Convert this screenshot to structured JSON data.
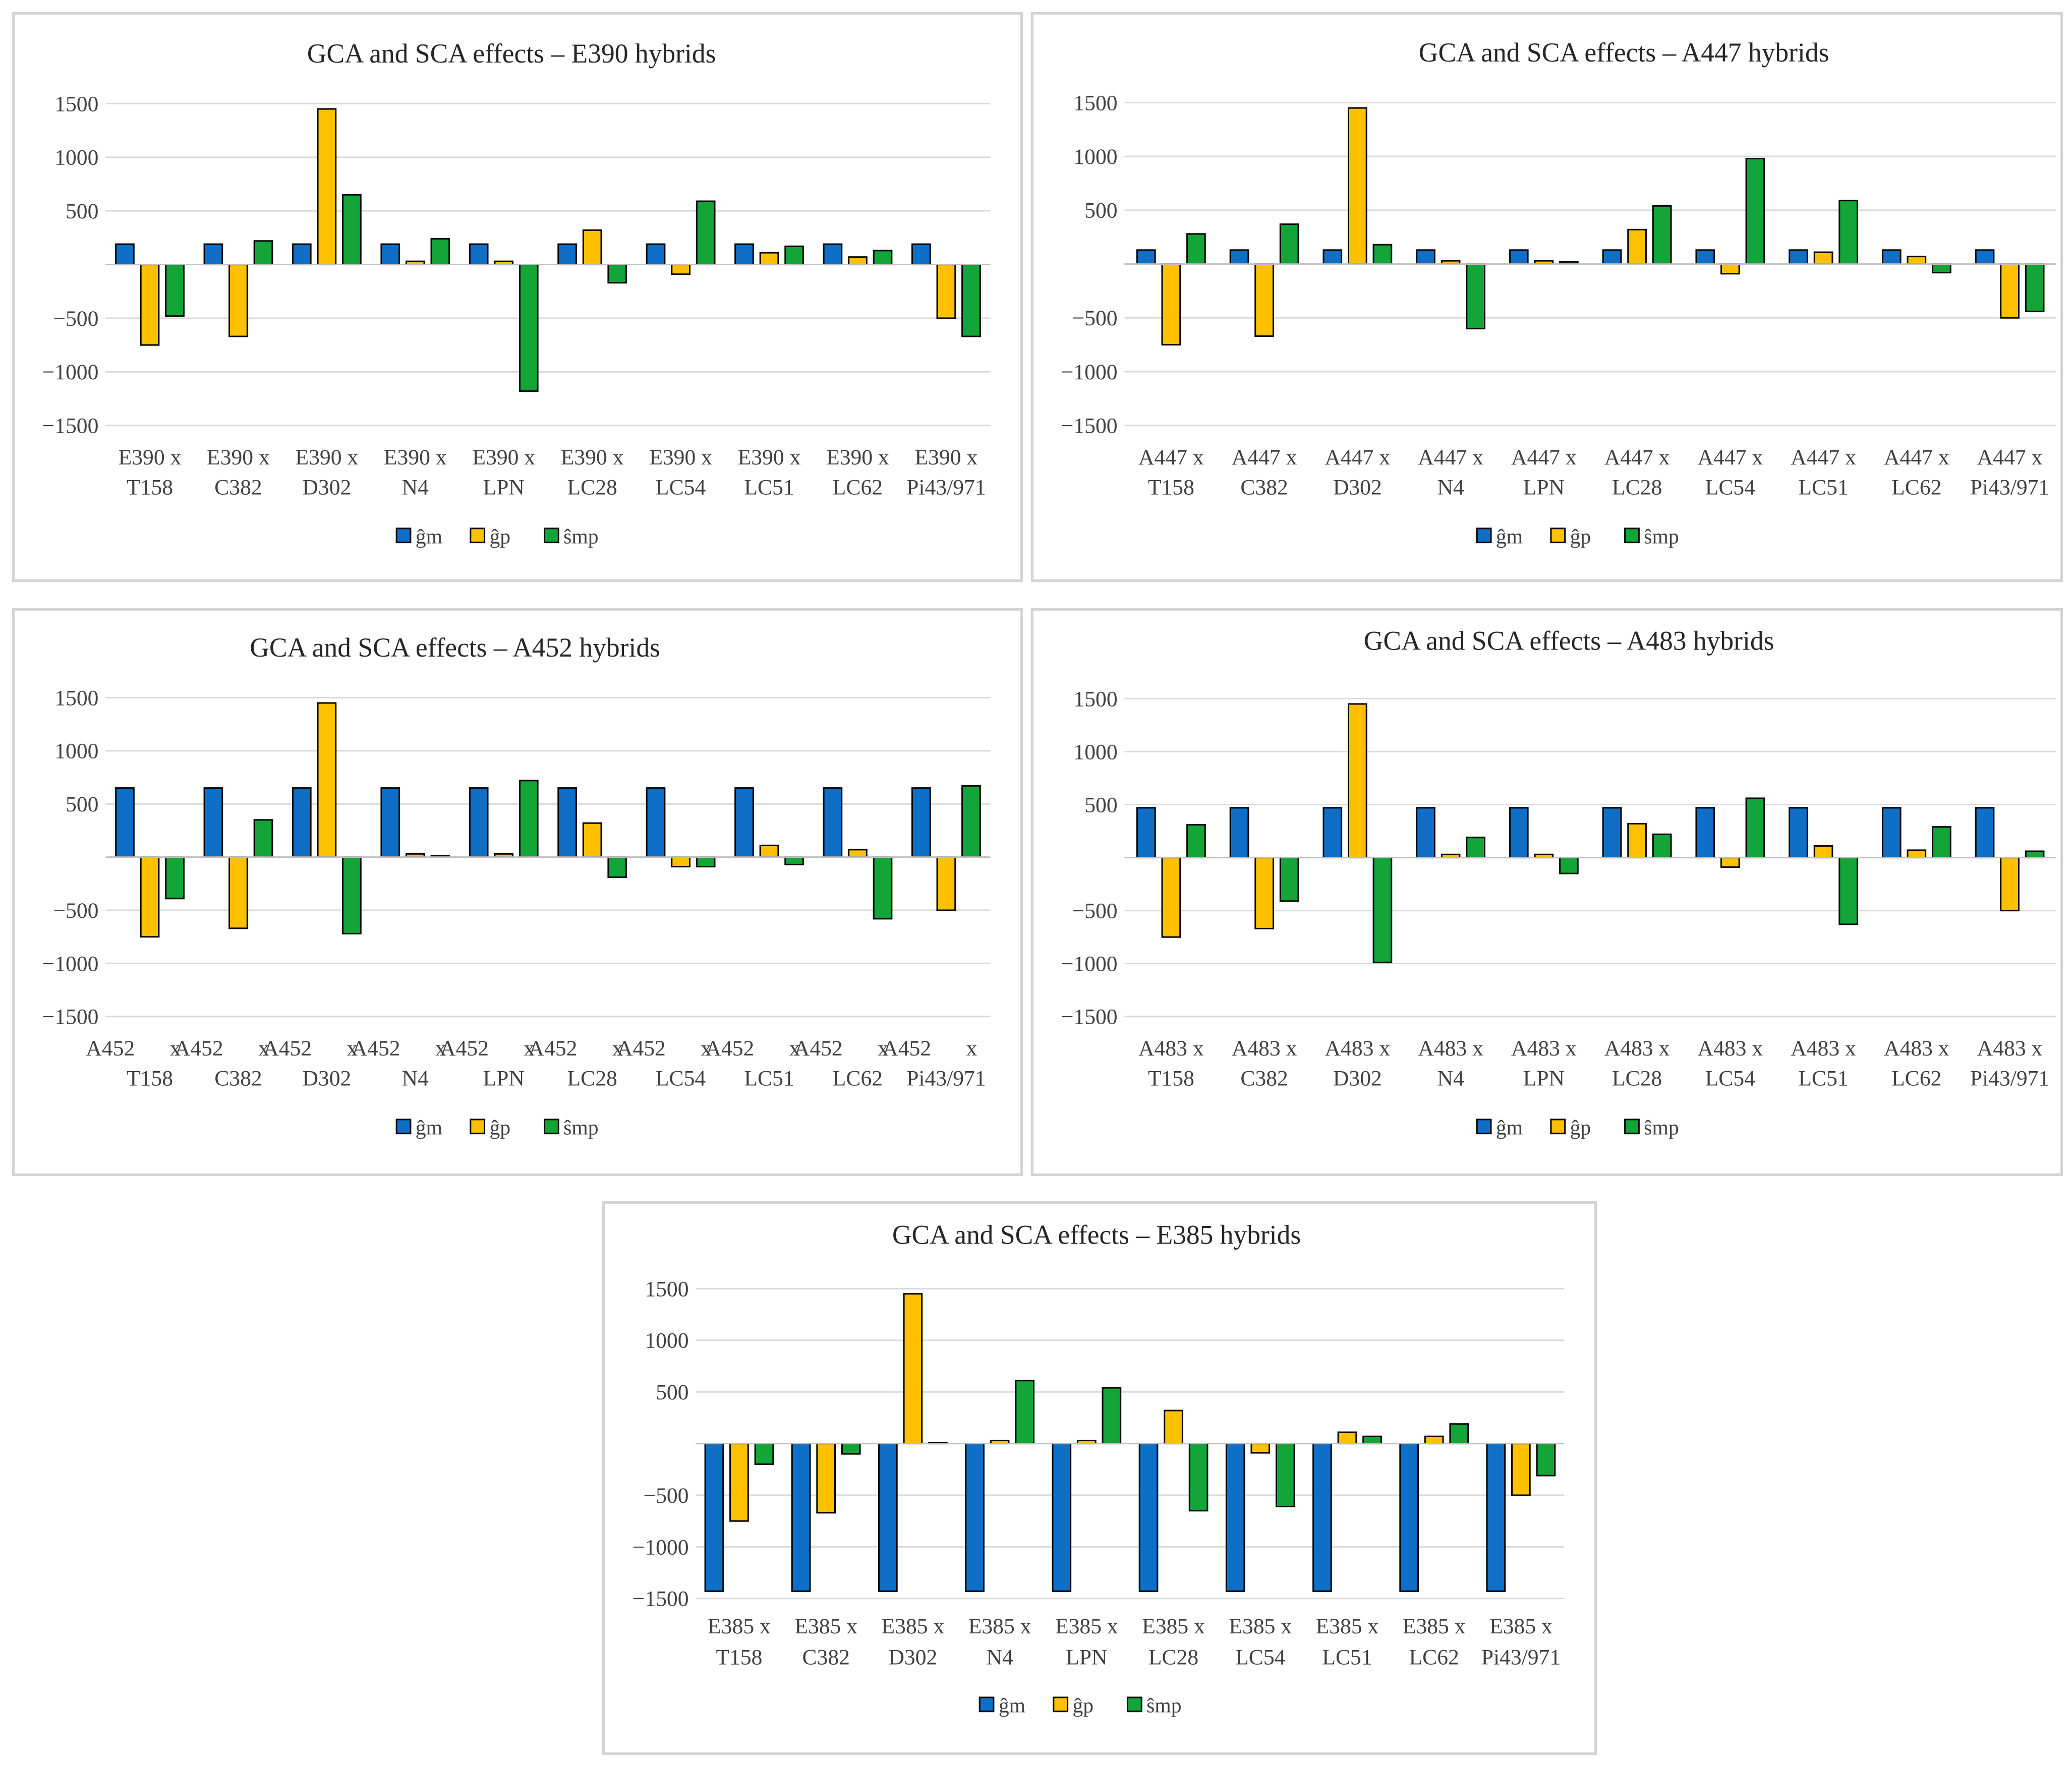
{
  "legend": [
    "ĝm",
    "ĝp",
    "ŝmp"
  ],
  "colors": {
    "gm": "#0f6fc6",
    "gp": "#ffc000",
    "smp": "#13a538"
  },
  "chart_data": [
    {
      "type": "bar",
      "title": "GCA and SCA effects – E390 hybrids",
      "ylim": [
        -1500,
        1500
      ],
      "yticks": [
        1500,
        1000,
        500,
        -500,
        -1000,
        -1500
      ],
      "categories": [
        [
          "E390 x",
          "T158"
        ],
        [
          "E390 x",
          "C382"
        ],
        [
          "E390 x",
          "D302"
        ],
        [
          "E390 x",
          "N4"
        ],
        [
          "E390 x",
          "LPN"
        ],
        [
          "E390 x",
          "LC28"
        ],
        [
          "E390 x",
          "LC54"
        ],
        [
          "E390 x",
          "LC51"
        ],
        [
          "E390 x",
          "LC62"
        ],
        [
          "E390 x",
          "Pi43/971"
        ]
      ],
      "series": [
        {
          "name": "ĝm",
          "values": [
            190,
            190,
            190,
            190,
            190,
            190,
            190,
            190,
            190,
            190
          ]
        },
        {
          "name": "ĝp",
          "values": [
            -750,
            -670,
            1450,
            30,
            30,
            320,
            -90,
            110,
            70,
            -500
          ]
        },
        {
          "name": "ŝmp",
          "values": [
            -480,
            220,
            650,
            240,
            -1180,
            -170,
            590,
            170,
            130,
            -670
          ]
        }
      ]
    },
    {
      "type": "bar",
      "title": "GCA and SCA effects – A447 hybrids",
      "ylim": [
        -1500,
        1500
      ],
      "yticks": [
        1500,
        1000,
        500,
        -500,
        -1000,
        -1500
      ],
      "categories": [
        [
          "A447 x",
          "T158"
        ],
        [
          "A447 x",
          "C382"
        ],
        [
          "A447 x",
          "D302"
        ],
        [
          "A447 x",
          "N4"
        ],
        [
          "A447 x",
          "LPN"
        ],
        [
          "A447 x",
          "LC28"
        ],
        [
          "A447 x",
          "LC54"
        ],
        [
          "A447 x",
          "LC51"
        ],
        [
          "A447 x",
          "LC62"
        ],
        [
          "A447 x",
          "Pi43/971"
        ]
      ],
      "series": [
        {
          "name": "ĝm",
          "values": [
            130,
            130,
            130,
            130,
            130,
            130,
            130,
            130,
            130,
            130
          ]
        },
        {
          "name": "ĝp",
          "values": [
            -750,
            -670,
            1450,
            30,
            30,
            320,
            -90,
            110,
            70,
            -500
          ]
        },
        {
          "name": "ŝmp",
          "values": [
            280,
            370,
            180,
            -600,
            20,
            540,
            980,
            590,
            -80,
            -440
          ]
        }
      ]
    },
    {
      "type": "bar",
      "title": "GCA and SCA effects – A452 hybrids",
      "ylim": [
        -1500,
        1500
      ],
      "yticks": [
        1500,
        1000,
        500,
        -500,
        -1000,
        -1500
      ],
      "categories": [
        [
          "A452",
          "x",
          "T158"
        ],
        [
          "A452",
          "x",
          "C382"
        ],
        [
          "A452",
          "x",
          "D302"
        ],
        [
          "A452",
          "x",
          "N4"
        ],
        [
          "A452",
          "x",
          "LPN"
        ],
        [
          "A452",
          "x",
          "LC28"
        ],
        [
          "A452",
          "x",
          "LC54"
        ],
        [
          "A452",
          "x",
          "LC51"
        ],
        [
          "A452",
          "x",
          "LC62"
        ],
        [
          "A452",
          "x",
          "Pi43/971"
        ]
      ],
      "series": [
        {
          "name": "ĝm",
          "values": [
            650,
            650,
            650,
            650,
            650,
            650,
            650,
            650,
            650,
            650
          ]
        },
        {
          "name": "ĝp",
          "values": [
            -750,
            -670,
            1450,
            30,
            30,
            320,
            -90,
            110,
            70,
            -500
          ]
        },
        {
          "name": "ŝmp",
          "values": [
            -390,
            350,
            -720,
            10,
            720,
            -190,
            -90,
            -70,
            -580,
            670
          ]
        }
      ]
    },
    {
      "type": "bar",
      "title": "GCA and SCA effects – A483 hybrids",
      "ylim": [
        -1500,
        1500
      ],
      "yticks": [
        1500,
        1000,
        500,
        -500,
        -1000,
        -1500
      ],
      "categories": [
        [
          "A483 x",
          "T158"
        ],
        [
          "A483 x",
          "C382"
        ],
        [
          "A483 x",
          "D302"
        ],
        [
          "A483 x",
          "N4"
        ],
        [
          "A483 x",
          "LPN"
        ],
        [
          "A483 x",
          "LC28"
        ],
        [
          "A483 x",
          "LC54"
        ],
        [
          "A483 x",
          "LC51"
        ],
        [
          "A483 x",
          "LC62"
        ],
        [
          "A483 x",
          "Pi43/971"
        ]
      ],
      "series": [
        {
          "name": "ĝm",
          "values": [
            470,
            470,
            470,
            470,
            470,
            470,
            470,
            470,
            470,
            470
          ]
        },
        {
          "name": "ĝp",
          "values": [
            -750,
            -670,
            1450,
            30,
            30,
            320,
            -90,
            110,
            70,
            -500
          ]
        },
        {
          "name": "ŝmp",
          "values": [
            310,
            -410,
            -990,
            190,
            -150,
            220,
            560,
            -630,
            290,
            60
          ]
        }
      ]
    },
    {
      "type": "bar",
      "title": "GCA and SCA effects – E385 hybrids",
      "ylim": [
        -1500,
        1500
      ],
      "yticks": [
        1500,
        1000,
        500,
        -500,
        -1000,
        -1500
      ],
      "categories": [
        [
          "E385 x",
          "T158"
        ],
        [
          "E385 x",
          "C382"
        ],
        [
          "E385 x",
          "D302"
        ],
        [
          "E385 x",
          "N4"
        ],
        [
          "E385 x",
          "LPN"
        ],
        [
          "E385 x",
          "LC28"
        ],
        [
          "E385 x",
          "LC54"
        ],
        [
          "E385 x",
          "LC51"
        ],
        [
          "E385 x",
          "LC62"
        ],
        [
          "E385 x",
          "Pi43/971"
        ]
      ],
      "series": [
        {
          "name": "ĝm",
          "values": [
            -1430,
            -1430,
            -1430,
            -1430,
            -1430,
            -1430,
            -1430,
            -1430,
            -1430,
            -1430
          ]
        },
        {
          "name": "ĝp",
          "values": [
            -750,
            -670,
            1450,
            30,
            30,
            320,
            -90,
            110,
            70,
            -500
          ]
        },
        {
          "name": "ŝmp",
          "values": [
            -200,
            -100,
            10,
            610,
            540,
            -650,
            -610,
            70,
            190,
            -310
          ]
        }
      ]
    }
  ]
}
